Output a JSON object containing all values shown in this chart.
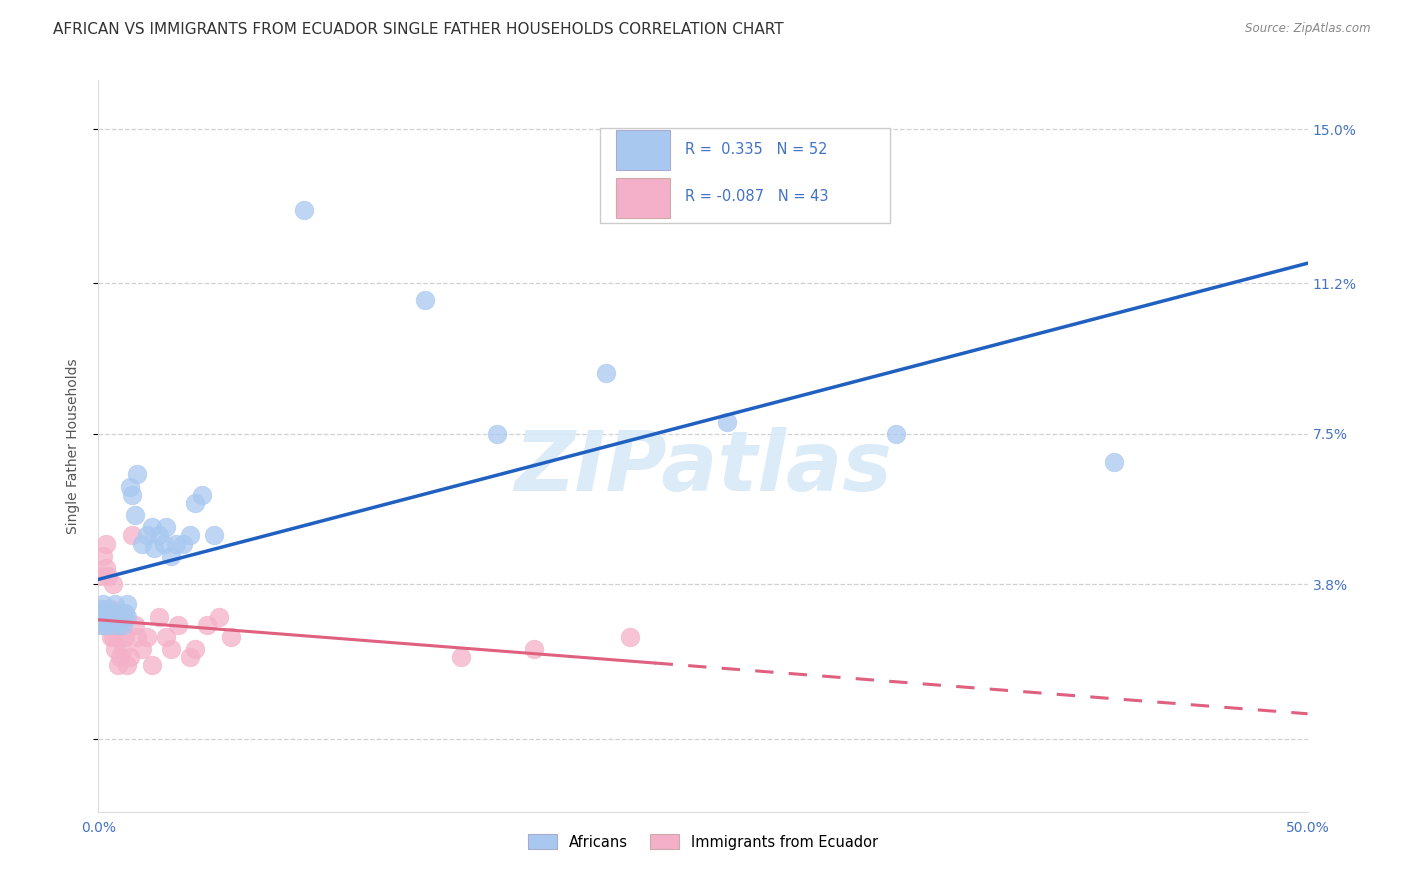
{
  "title": "AFRICAN VS IMMIGRANTS FROM ECUADOR SINGLE FATHER HOUSEHOLDS CORRELATION CHART",
  "source": "Source: ZipAtlas.com",
  "ylabel": "Single Father Households",
  "xlim": [
    0.0,
    0.5
  ],
  "ylim": [
    -0.018,
    0.162
  ],
  "ytick_vals": [
    0.0,
    0.038,
    0.075,
    0.112,
    0.15
  ],
  "ytick_labels": [
    "",
    "3.8%",
    "7.5%",
    "11.2%",
    "15.0%"
  ],
  "xtick_vals": [
    0.0,
    0.1,
    0.2,
    0.3,
    0.4,
    0.5
  ],
  "xtick_labels": [
    "0.0%",
    "",
    "",
    "",
    "",
    "50.0%"
  ],
  "africans_color": "#a8c8f0",
  "ecuador_color": "#f4b0c8",
  "trend_african_color": "#2060c0",
  "trend_ecuador_color": "#e06080",
  "background_color": "#ffffff",
  "grid_color": "#cccccc",
  "title_fontsize": 11,
  "axis_label_fontsize": 9,
  "tick_fontsize": 10,
  "right_tick_color": "#4472c4",
  "watermark_color": "#d8eaf8",
  "africans_x": [
    0.001,
    0.001,
    0.001,
    0.002,
    0.002,
    0.002,
    0.003,
    0.003,
    0.003,
    0.004,
    0.004,
    0.005,
    0.005,
    0.005,
    0.006,
    0.006,
    0.007,
    0.007,
    0.008,
    0.008,
    0.009,
    0.009,
    0.01,
    0.01,
    0.011,
    0.012,
    0.012,
    0.013,
    0.014,
    0.015,
    0.016,
    0.018,
    0.02,
    0.022,
    0.023,
    0.025,
    0.027,
    0.028,
    0.03,
    0.032,
    0.035,
    0.038,
    0.04,
    0.043,
    0.048,
    0.085,
    0.135,
    0.165,
    0.21,
    0.26,
    0.33,
    0.42
  ],
  "africans_y": [
    0.03,
    0.028,
    0.032,
    0.031,
    0.029,
    0.033,
    0.03,
    0.028,
    0.031,
    0.032,
    0.029,
    0.03,
    0.031,
    0.028,
    0.031,
    0.029,
    0.03,
    0.033,
    0.028,
    0.03,
    0.031,
    0.029,
    0.03,
    0.028,
    0.031,
    0.03,
    0.033,
    0.062,
    0.06,
    0.055,
    0.065,
    0.048,
    0.05,
    0.052,
    0.047,
    0.05,
    0.048,
    0.052,
    0.045,
    0.048,
    0.048,
    0.05,
    0.058,
    0.06,
    0.05,
    0.13,
    0.108,
    0.075,
    0.09,
    0.078,
    0.075,
    0.068
  ],
  "ecuador_x": [
    0.001,
    0.001,
    0.002,
    0.002,
    0.002,
    0.003,
    0.003,
    0.003,
    0.004,
    0.004,
    0.005,
    0.005,
    0.005,
    0.006,
    0.006,
    0.007,
    0.007,
    0.008,
    0.008,
    0.009,
    0.009,
    0.01,
    0.011,
    0.012,
    0.013,
    0.014,
    0.015,
    0.016,
    0.018,
    0.02,
    0.022,
    0.025,
    0.028,
    0.03,
    0.033,
    0.038,
    0.04,
    0.045,
    0.05,
    0.055,
    0.15,
    0.18,
    0.22
  ],
  "ecuador_y": [
    0.028,
    0.04,
    0.032,
    0.045,
    0.03,
    0.048,
    0.042,
    0.03,
    0.04,
    0.028,
    0.032,
    0.03,
    0.025,
    0.038,
    0.025,
    0.028,
    0.022,
    0.025,
    0.018,
    0.028,
    0.02,
    0.022,
    0.025,
    0.018,
    0.02,
    0.05,
    0.028,
    0.025,
    0.022,
    0.025,
    0.018,
    0.03,
    0.025,
    0.022,
    0.028,
    0.02,
    0.022,
    0.028,
    0.03,
    0.025,
    0.02,
    0.022,
    0.025
  ],
  "legend_r1": "R =  0.335   N = 52",
  "legend_r2": "R = -0.087   N = 43"
}
